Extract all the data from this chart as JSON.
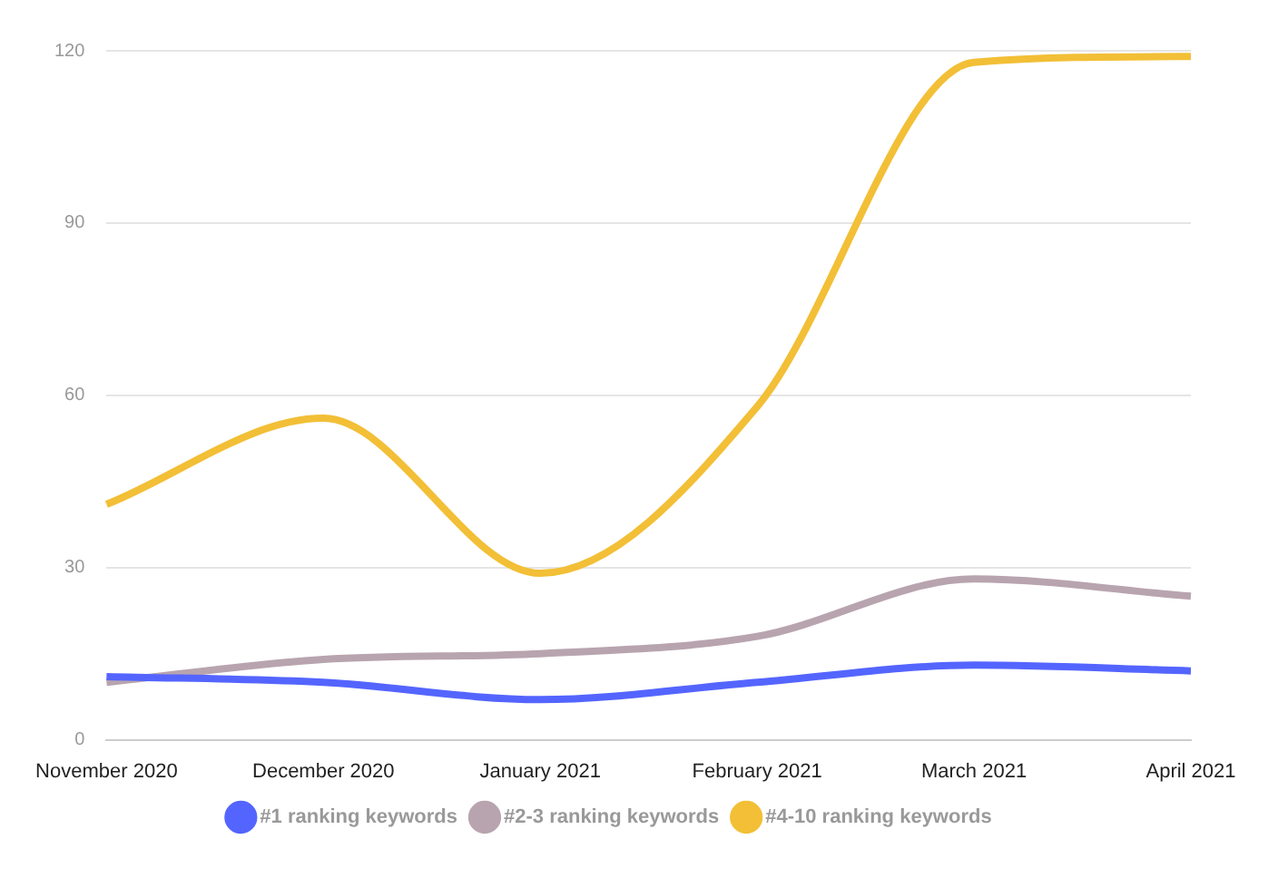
{
  "chart_data": {
    "type": "line",
    "categories": [
      "November 2020",
      "December 2020",
      "January 2021",
      "February 2021",
      "March 2021",
      "April 2021"
    ],
    "series": [
      {
        "name": "#1 ranking keywords",
        "color": "#5465ff",
        "values": [
          11,
          10,
          7,
          10,
          13,
          12
        ]
      },
      {
        "name": "#2-3 ranking keywords",
        "color": "#b8a4ae",
        "values": [
          10,
          14,
          15,
          18,
          28,
          25
        ]
      },
      {
        "name": "#4-10 ranking keywords",
        "color": "#f2bf36",
        "values": [
          41,
          56,
          29,
          58,
          118,
          119
        ]
      }
    ],
    "ylim": [
      0,
      120
    ],
    "yticks": [
      0,
      30,
      60,
      90,
      120
    ],
    "grid": "y",
    "legend": "bottom",
    "marker": "none",
    "line_style": "solid"
  }
}
